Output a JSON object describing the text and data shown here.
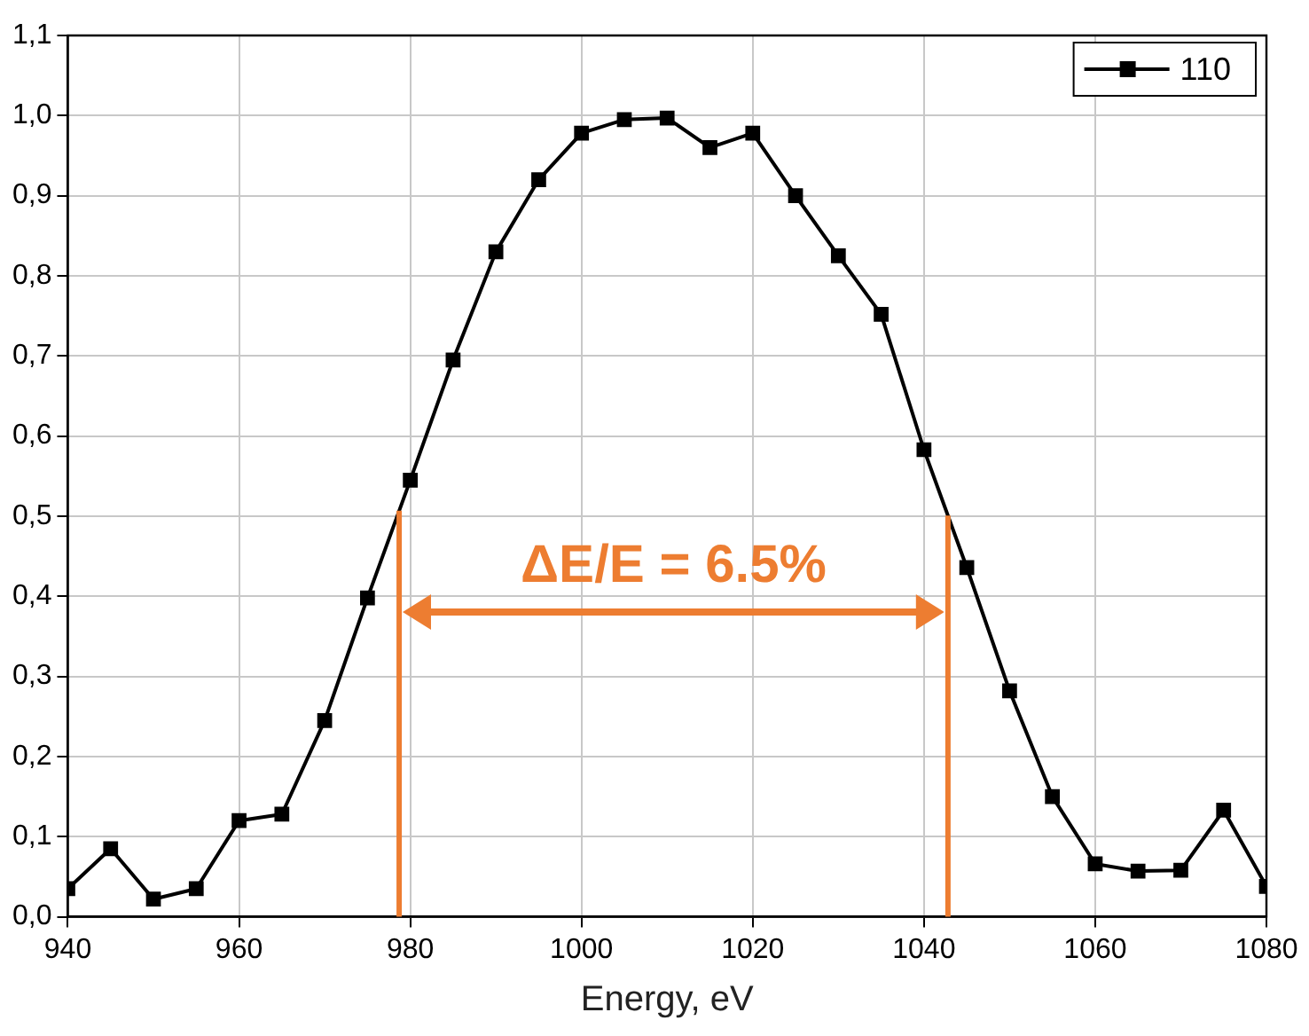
{
  "chart_data": {
    "type": "line",
    "xlabel": "Energy, eV",
    "x": [
      940,
      945,
      950,
      955,
      960,
      965,
      970,
      975,
      980,
      985,
      990,
      995,
      1000,
      1005,
      1010,
      1015,
      1020,
      1025,
      1030,
      1035,
      1040,
      1045,
      1050,
      1055,
      1060,
      1065,
      1070,
      1075,
      1080
    ],
    "series": [
      {
        "name": "110",
        "color": "#000000",
        "values": [
          0.035,
          0.085,
          0.022,
          0.035,
          0.12,
          0.128,
          0.245,
          0.398,
          0.545,
          0.695,
          0.83,
          0.92,
          0.978,
          0.995,
          0.997,
          0.96,
          0.978,
          0.9,
          0.825,
          0.752,
          0.583,
          0.436,
          0.282,
          0.15,
          0.066,
          0.057,
          0.058,
          0.133,
          0.038
        ]
      }
    ],
    "xlim": [
      940,
      1080
    ],
    "xticks": [
      940,
      960,
      980,
      1000,
      1020,
      1040,
      1060,
      1080
    ],
    "ylim": [
      0,
      1.1
    ],
    "yticks": [
      {
        "value": 0,
        "label": "0,0"
      },
      {
        "value": 0.1,
        "label": "0,1"
      },
      {
        "value": 0.2,
        "label": "0,2"
      },
      {
        "value": 0.3,
        "label": "0,3"
      },
      {
        "value": 0.4,
        "label": "0,4"
      },
      {
        "value": 0.5,
        "label": "0,5"
      },
      {
        "value": 0.6,
        "label": "0,6"
      },
      {
        "value": 0.7,
        "label": "0,7"
      },
      {
        "value": 0.8,
        "label": "0,8"
      },
      {
        "value": 0.9,
        "label": "0,9"
      },
      {
        "value": 1.0,
        "label": "1,0"
      },
      {
        "value": 1.1,
        "label": "1,1"
      }
    ],
    "ref_lines": [
      {
        "axis": "x",
        "value": 978.7,
        "color": "#ed7d31"
      },
      {
        "axis": "x",
        "value": 1042.8,
        "color": "#ed7d31"
      }
    ],
    "annotations": [
      "ΔE/E = 6.5%"
    ],
    "grid": true,
    "legend": "top right",
    "marker": "square",
    "line_style": "solid"
  }
}
